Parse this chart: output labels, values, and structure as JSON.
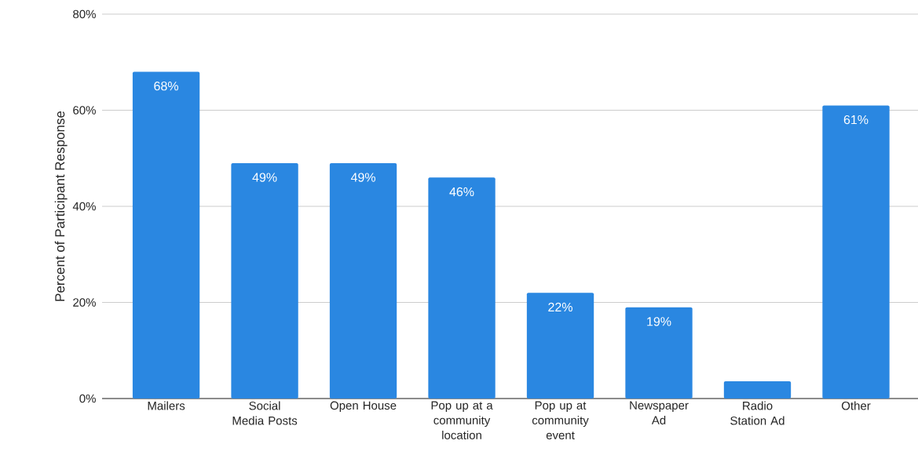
{
  "chart_data": {
    "type": "bar",
    "ylabel": "Percent of Participant Response",
    "categories": [
      "Mailers",
      "Social Media Posts",
      "Open House",
      "Pop up at a community location",
      "Pop up at community event",
      "Newspaper Ad",
      "Radio Station Ad",
      "Other"
    ],
    "values": [
      68,
      49,
      49,
      46,
      22,
      19,
      3.6,
      61
    ],
    "value_labels": [
      "68%",
      "49%",
      "49%",
      "46%",
      "22%",
      "19%",
      null,
      "61%"
    ],
    "color": "#2a87e1",
    "ylim": [
      0,
      80
    ],
    "yticks": [
      {
        "value": 0,
        "label": "0%"
      },
      {
        "value": 20,
        "label": "20%"
      },
      {
        "value": 40,
        "label": "40%"
      },
      {
        "value": 60,
        "label": "60%"
      },
      {
        "value": 80,
        "label": "80%"
      }
    ],
    "grid": "y"
  }
}
